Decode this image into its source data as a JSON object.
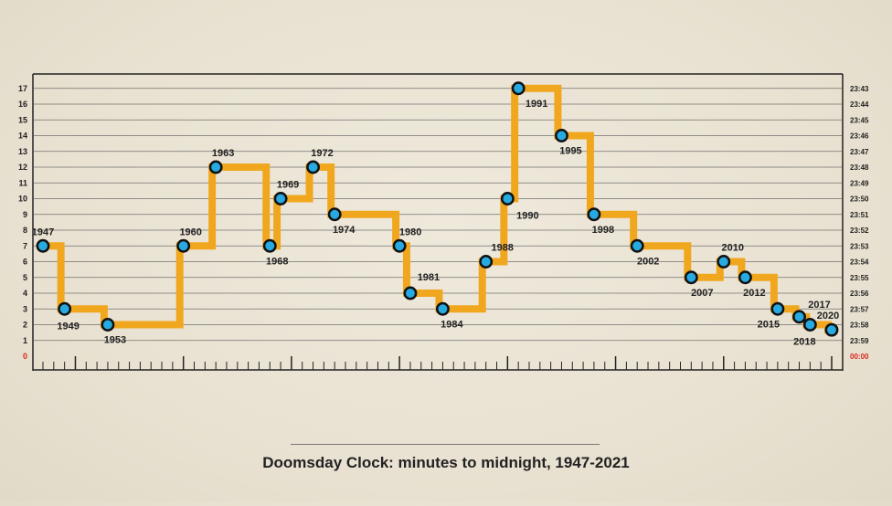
{
  "chart_data": {
    "type": "line",
    "step": true,
    "title": "Doomsday Clock: minutes to midnight, 1947-2021",
    "x": [
      1947,
      1949,
      1953,
      1960,
      1963,
      1968,
      1969,
      1972,
      1974,
      1980,
      1981,
      1984,
      1988,
      1990,
      1991,
      1995,
      1998,
      2002,
      2007,
      2010,
      2012,
      2015,
      2017,
      2018,
      2020
    ],
    "values": [
      7,
      3,
      2,
      7,
      12,
      7,
      10,
      12,
      9,
      7,
      4,
      3,
      6,
      10,
      17,
      14,
      9,
      7,
      5,
      6,
      5,
      3,
      2.5,
      2,
      1.67
    ],
    "point_labels": [
      "1947",
      "1949",
      "1953",
      "1960",
      "1963",
      "1968",
      "1969",
      "1972",
      "1974",
      "1980",
      "1981",
      "1984",
      "1988",
      "1990",
      "1991",
      "1995",
      "1998",
      "2002",
      "2007",
      "2010",
      "2012",
      "2015",
      "2017",
      "2018",
      "2020"
    ],
    "xlim": [
      1946,
      2021
    ],
    "ylim": [
      0,
      17
    ],
    "y_ticks_left": [
      "0",
      "1",
      "2",
      "3",
      "4",
      "5",
      "6",
      "7",
      "8",
      "9",
      "10",
      "11",
      "12",
      "13",
      "14",
      "15",
      "16",
      "17"
    ],
    "y_ticks_right": [
      "00:00",
      "23:59",
      "23:58",
      "23:57",
      "23:56",
      "23:55",
      "23:54",
      "23:53",
      "23:52",
      "23:51",
      "23:50",
      "23:49",
      "23:48",
      "23:47",
      "23:46",
      "23:45",
      "23:44",
      "23:43"
    ],
    "grid": true,
    "colors": {
      "line": "#f0a71e",
      "marker": "#27a9e1",
      "marker_edge": "#111111",
      "zero_label": "#d6281f",
      "grid": "#555555"
    }
  }
}
